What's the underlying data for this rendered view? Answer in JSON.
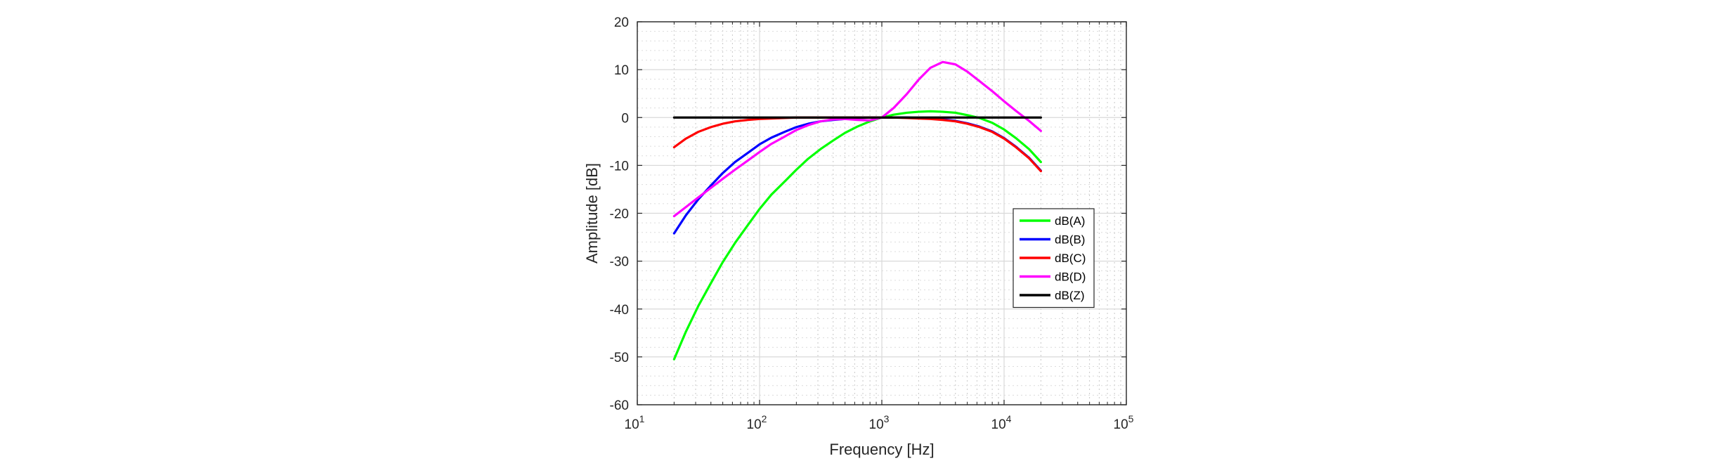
{
  "chart_data": {
    "type": "line",
    "title": "",
    "xlabel": "Frequency [Hz]",
    "ylabel": "Amplitude [dB]",
    "xscale": "log",
    "xlim": [
      10,
      100000
    ],
    "ylim": [
      -60,
      20
    ],
    "x_ticks": [
      10,
      100,
      1000,
      10000,
      100000
    ],
    "x_tick_labels": [
      {
        "base": "10",
        "exp": "1"
      },
      {
        "base": "10",
        "exp": "2"
      },
      {
        "base": "10",
        "exp": "3"
      },
      {
        "base": "10",
        "exp": "4"
      },
      {
        "base": "10",
        "exp": "5"
      }
    ],
    "y_ticks": [
      -60,
      -50,
      -40,
      -30,
      -20,
      -10,
      0,
      10,
      20
    ],
    "y_tick_labels": [
      "-60",
      "-50",
      "-40",
      "-30",
      "-20",
      "-10",
      "0",
      "10",
      "20"
    ],
    "grid": true,
    "minor_grid": true,
    "legend_position": "right-middle",
    "x": [
      20,
      25,
      31.5,
      40,
      50,
      63,
      80,
      100,
      125,
      160,
      200,
      250,
      315,
      400,
      500,
      630,
      800,
      1000,
      1250,
      1600,
      2000,
      2500,
      3150,
      4000,
      5000,
      6300,
      8000,
      10000,
      12500,
      16000,
      20000
    ],
    "series": [
      {
        "name": "dB(A)",
        "color": "#00ff00",
        "values": [
          -50.5,
          -44.7,
          -39.4,
          -34.6,
          -30.2,
          -26.2,
          -22.5,
          -19.1,
          -16.1,
          -13.4,
          -10.9,
          -8.6,
          -6.6,
          -4.8,
          -3.2,
          -1.9,
          -0.8,
          0.0,
          0.6,
          1.0,
          1.2,
          1.3,
          1.2,
          1.0,
          0.5,
          -0.1,
          -1.1,
          -2.5,
          -4.3,
          -6.6,
          -9.3
        ]
      },
      {
        "name": "dB(B)",
        "color": "#0000ff",
        "values": [
          -24.2,
          -20.4,
          -17.1,
          -14.2,
          -11.6,
          -9.3,
          -7.4,
          -5.6,
          -4.2,
          -3.0,
          -2.0,
          -1.3,
          -0.8,
          -0.5,
          -0.3,
          -0.1,
          0.0,
          0.0,
          0.0,
          0.0,
          -0.1,
          -0.2,
          -0.4,
          -0.7,
          -1.2,
          -1.9,
          -2.9,
          -4.3,
          -6.1,
          -8.4,
          -11.1
        ]
      },
      {
        "name": "dB(C)",
        "color": "#ff0000",
        "values": [
          -6.2,
          -4.4,
          -3.0,
          -2.0,
          -1.3,
          -0.8,
          -0.5,
          -0.3,
          -0.2,
          -0.1,
          0.0,
          0.0,
          0.0,
          0.0,
          0.0,
          0.0,
          0.0,
          0.0,
          0.0,
          -0.1,
          -0.2,
          -0.3,
          -0.5,
          -0.8,
          -1.3,
          -2.0,
          -3.0,
          -4.4,
          -6.2,
          -8.5,
          -11.2
        ]
      },
      {
        "name": "dB(D)",
        "color": "#ff00ff",
        "values": [
          -20.6,
          -18.7,
          -16.7,
          -14.7,
          -12.8,
          -10.9,
          -9.0,
          -7.2,
          -5.5,
          -4.0,
          -2.6,
          -1.6,
          -0.8,
          -0.4,
          -0.3,
          -0.5,
          -0.6,
          0.0,
          2.0,
          4.9,
          7.9,
          10.4,
          11.6,
          11.1,
          9.6,
          7.6,
          5.5,
          3.4,
          1.4,
          -0.7,
          -2.8
        ]
      },
      {
        "name": "dB(Z)",
        "color": "#000000",
        "values": [
          0,
          0,
          0,
          0,
          0,
          0,
          0,
          0,
          0,
          0,
          0,
          0,
          0,
          0,
          0,
          0,
          0,
          0,
          0,
          0,
          0,
          0,
          0,
          0,
          0,
          0,
          0,
          0,
          0,
          0,
          0
        ]
      }
    ]
  }
}
